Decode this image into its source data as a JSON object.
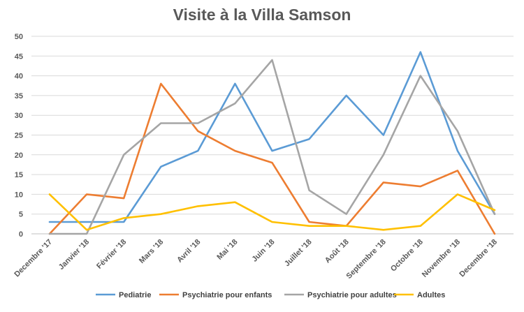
{
  "chart_data": {
    "type": "line",
    "title": "Visite à la Villa Samson",
    "categories": [
      "Decembre '17",
      "Janvier '18",
      "Février '18",
      "Mars '18",
      "Avril '18",
      "Mai '18",
      "Juin '18",
      "Juillet '18",
      "Août '18",
      "Septembre '18",
      "Octobre '18",
      "Novembre '18",
      "Decembre '18"
    ],
    "ylim": [
      0,
      50
    ],
    "yticks": [
      0,
      5,
      10,
      15,
      20,
      25,
      30,
      35,
      40,
      45,
      50
    ],
    "grid": true,
    "legend_position": "bottom",
    "series": [
      {
        "name": "Pediatrie",
        "color": "#5B9BD5",
        "values": [
          3,
          3,
          3,
          17,
          21,
          38,
          21,
          24,
          35,
          25,
          46,
          21,
          5
        ]
      },
      {
        "name": "Psychiatrie pour enfants",
        "color": "#ED7D31",
        "values": [
          0,
          10,
          9,
          38,
          26,
          21,
          18,
          3,
          2,
          13,
          12,
          16,
          0
        ]
      },
      {
        "name": "Psychiatrie pour adultes",
        "color": "#A5A5A5",
        "values": [
          0,
          0,
          20,
          28,
          28,
          33,
          44,
          11,
          5,
          20,
          40,
          26,
          5
        ]
      },
      {
        "name": "Adultes",
        "color": "#FFC000",
        "values": [
          10,
          1,
          4,
          5,
          7,
          8,
          3,
          2,
          2,
          1,
          2,
          10,
          6
        ]
      }
    ]
  }
}
